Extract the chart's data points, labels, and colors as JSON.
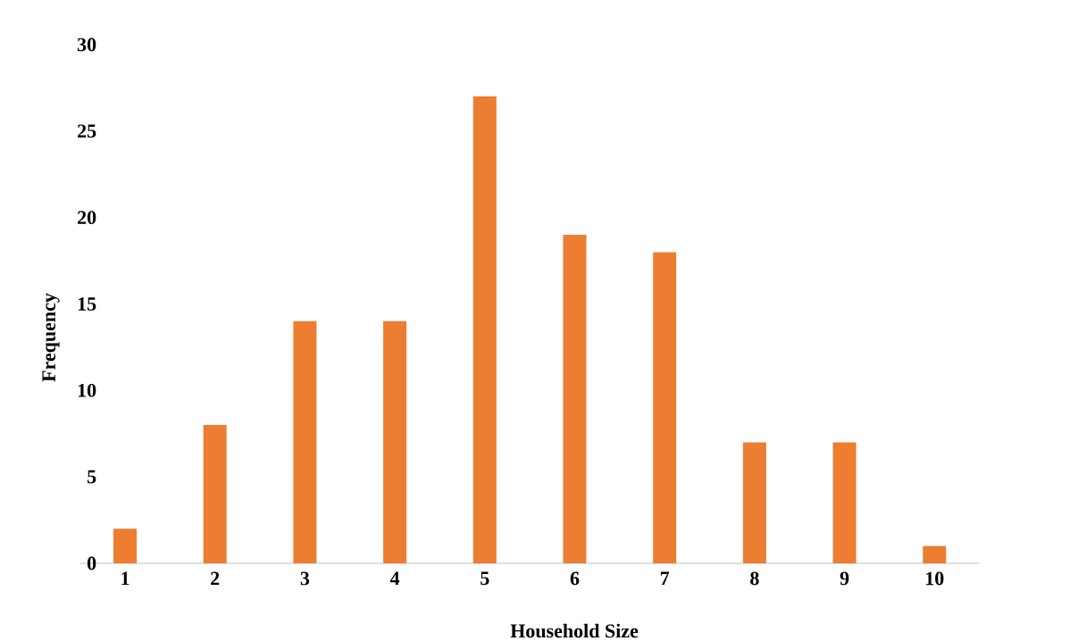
{
  "chart_data": {
    "type": "bar",
    "xlabel": "Household Size",
    "ylabel": "Frequency",
    "categories": [
      "1",
      "2",
      "3",
      "4",
      "5",
      "6",
      "7",
      "8",
      "9",
      "10"
    ],
    "values": [
      2,
      8,
      14,
      14,
      27,
      19,
      18,
      7,
      7,
      1
    ],
    "color": "#ed7d31",
    "ylim": [
      0,
      30
    ],
    "yticks": [
      0,
      5,
      10,
      15,
      20,
      25,
      30
    ]
  }
}
